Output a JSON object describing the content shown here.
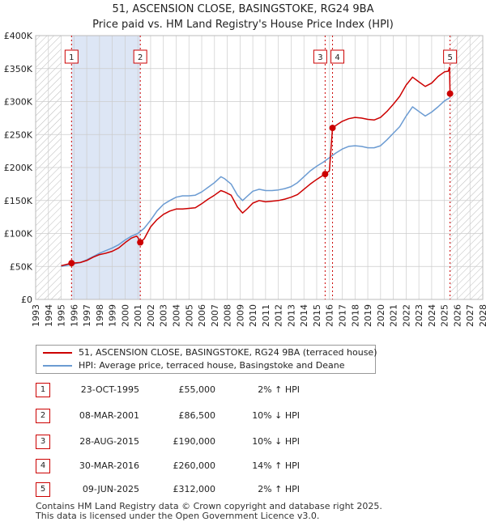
{
  "title_line1": "51, ASCENSION CLOSE, BASINGSTOKE, RG24 9BA",
  "title_line2": "Price paid vs. HM Land Registry's House Price Index (HPI)",
  "colors": {
    "red": "#cc0000",
    "blue": "#6b9bd2",
    "shade": "#dde6f5",
    "hatch": "#bbbbbb",
    "grid": "#cccccc"
  },
  "chart_data": {
    "type": "line",
    "xlim": [
      1993,
      2028
    ],
    "ylim": [
      0,
      400000
    ],
    "x_ticks": [
      "1993",
      "1994",
      "1995",
      "1996",
      "1997",
      "1998",
      "1999",
      "2000",
      "2001",
      "2002",
      "2003",
      "2004",
      "2005",
      "2006",
      "2007",
      "2008",
      "2009",
      "2010",
      "2011",
      "2012",
      "2013",
      "2014",
      "2015",
      "2016",
      "2017",
      "2018",
      "2019",
      "2020",
      "2021",
      "2022",
      "2023",
      "2024",
      "2025",
      "2026",
      "2027",
      "2028"
    ],
    "y_ticks": [
      {
        "value": 0,
        "label": "£0"
      },
      {
        "value": 50000,
        "label": "£50K"
      },
      {
        "value": 100000,
        "label": "£100K"
      },
      {
        "value": 150000,
        "label": "£150K"
      },
      {
        "value": 200000,
        "label": "£200K"
      },
      {
        "value": 250000,
        "label": "£250K"
      },
      {
        "value": 300000,
        "label": "£300K"
      },
      {
        "value": 350000,
        "label": "£350K"
      },
      {
        "value": 400000,
        "label": "£400K"
      }
    ],
    "hatched_before": 1995.0,
    "hatched_after": 2025.45,
    "shaded_range": [
      1995.81,
      2001.19
    ],
    "series": [
      {
        "name": "51, ASCENSION CLOSE, BASINGSTOKE, RG24 9BA (terraced house)",
        "color": "#cc0000",
        "points": [
          [
            1995.0,
            51000
          ],
          [
            1995.81,
            55000
          ],
          [
            1996.5,
            56000
          ],
          [
            1997.0,
            59000
          ],
          [
            1997.5,
            64000
          ],
          [
            1998.0,
            68000
          ],
          [
            1998.5,
            70000
          ],
          [
            1999.0,
            73000
          ],
          [
            1999.5,
            78000
          ],
          [
            2000.0,
            86000
          ],
          [
            2000.5,
            93000
          ],
          [
            2000.9,
            96000
          ],
          [
            2001.0,
            94000
          ],
          [
            2001.19,
            86500
          ],
          [
            2001.5,
            92000
          ],
          [
            2002.0,
            110000
          ],
          [
            2002.5,
            121000
          ],
          [
            2003.0,
            129000
          ],
          [
            2003.5,
            134000
          ],
          [
            2004.0,
            137000
          ],
          [
            2004.5,
            137000
          ],
          [
            2005.0,
            138000
          ],
          [
            2005.5,
            139000
          ],
          [
            2006.0,
            145000
          ],
          [
            2006.5,
            152000
          ],
          [
            2007.0,
            158000
          ],
          [
            2007.5,
            165000
          ],
          [
            2007.8,
            163000
          ],
          [
            2008.3,
            158000
          ],
          [
            2008.8,
            140000
          ],
          [
            2009.2,
            131000
          ],
          [
            2009.6,
            138000
          ],
          [
            2010.0,
            146000
          ],
          [
            2010.5,
            150000
          ],
          [
            2011.0,
            148000
          ],
          [
            2011.5,
            149000
          ],
          [
            2012.0,
            150000
          ],
          [
            2012.5,
            152000
          ],
          [
            2013.0,
            155000
          ],
          [
            2013.5,
            159000
          ],
          [
            2014.0,
            167000
          ],
          [
            2014.5,
            175000
          ],
          [
            2015.0,
            182000
          ],
          [
            2015.4,
            187000
          ],
          [
            2015.66,
            190000
          ],
          [
            2016.0,
            195000
          ],
          [
            2016.24,
            260000
          ],
          [
            2016.6,
            265000
          ],
          [
            2017.0,
            270000
          ],
          [
            2017.5,
            274000
          ],
          [
            2018.0,
            276000
          ],
          [
            2018.5,
            275000
          ],
          [
            2019.0,
            273000
          ],
          [
            2019.5,
            272000
          ],
          [
            2020.0,
            276000
          ],
          [
            2020.5,
            285000
          ],
          [
            2021.0,
            296000
          ],
          [
            2021.5,
            308000
          ],
          [
            2022.0,
            325000
          ],
          [
            2022.5,
            337000
          ],
          [
            2023.0,
            330000
          ],
          [
            2023.5,
            323000
          ],
          [
            2024.0,
            328000
          ],
          [
            2024.5,
            338000
          ],
          [
            2025.0,
            345000
          ],
          [
            2025.3,
            346000
          ],
          [
            2025.4,
            352000
          ],
          [
            2025.44,
            312000
          ]
        ]
      },
      {
        "name": "HPI: Average price, terraced house, Basingstoke and Deane",
        "color": "#6b9bd2",
        "points": [
          [
            1995.0,
            50000
          ],
          [
            1995.81,
            53000
          ],
          [
            1996.5,
            56000
          ],
          [
            1997.0,
            60000
          ],
          [
            1997.5,
            65000
          ],
          [
            1998.0,
            70000
          ],
          [
            1998.5,
            74000
          ],
          [
            1999.0,
            78000
          ],
          [
            1999.5,
            83000
          ],
          [
            2000.0,
            90000
          ],
          [
            2000.5,
            96000
          ],
          [
            2001.0,
            100000
          ],
          [
            2001.5,
            108000
          ],
          [
            2002.0,
            120000
          ],
          [
            2002.5,
            134000
          ],
          [
            2003.0,
            144000
          ],
          [
            2003.5,
            150000
          ],
          [
            2004.0,
            155000
          ],
          [
            2004.5,
            157000
          ],
          [
            2005.0,
            157000
          ],
          [
            2005.5,
            158000
          ],
          [
            2006.0,
            163000
          ],
          [
            2006.5,
            170000
          ],
          [
            2007.0,
            177000
          ],
          [
            2007.5,
            186000
          ],
          [
            2007.8,
            183000
          ],
          [
            2008.3,
            175000
          ],
          [
            2008.8,
            158000
          ],
          [
            2009.2,
            150000
          ],
          [
            2009.6,
            157000
          ],
          [
            2010.0,
            164000
          ],
          [
            2010.5,
            167000
          ],
          [
            2011.0,
            165000
          ],
          [
            2011.5,
            165000
          ],
          [
            2012.0,
            166000
          ],
          [
            2012.5,
            168000
          ],
          [
            2013.0,
            171000
          ],
          [
            2013.5,
            177000
          ],
          [
            2014.0,
            186000
          ],
          [
            2014.5,
            195000
          ],
          [
            2015.0,
            202000
          ],
          [
            2015.5,
            208000
          ],
          [
            2016.0,
            215000
          ],
          [
            2016.5,
            222000
          ],
          [
            2017.0,
            228000
          ],
          [
            2017.5,
            232000
          ],
          [
            2018.0,
            233000
          ],
          [
            2018.5,
            232000
          ],
          [
            2019.0,
            230000
          ],
          [
            2019.5,
            230000
          ],
          [
            2020.0,
            233000
          ],
          [
            2020.5,
            242000
          ],
          [
            2021.0,
            252000
          ],
          [
            2021.5,
            262000
          ],
          [
            2022.0,
            278000
          ],
          [
            2022.5,
            292000
          ],
          [
            2023.0,
            285000
          ],
          [
            2023.5,
            278000
          ],
          [
            2024.0,
            284000
          ],
          [
            2024.5,
            292000
          ],
          [
            2025.0,
            301000
          ],
          [
            2025.44,
            306000
          ]
        ]
      }
    ],
    "sales": [
      {
        "n": "1",
        "x": 1995.81,
        "price": 55000
      },
      {
        "n": "2",
        "x": 2001.19,
        "price": 86500
      },
      {
        "n": "3",
        "x": 2015.66,
        "price": 190000
      },
      {
        "n": "4",
        "x": 2016.24,
        "price": 260000
      },
      {
        "n": "5",
        "x": 2025.44,
        "price": 312000
      }
    ]
  },
  "legend": {
    "red": "51, ASCENSION CLOSE, BASINGSTOKE, RG24 9BA (terraced house)",
    "blue": "HPI: Average price, terraced house, Basingstoke and Deane"
  },
  "transactions": [
    {
      "n": "1",
      "date": "23-OCT-1995",
      "price": "£55,000",
      "hpi": "2% ↑ HPI"
    },
    {
      "n": "2",
      "date": "08-MAR-2001",
      "price": "£86,500",
      "hpi": "10% ↓ HPI"
    },
    {
      "n": "3",
      "date": "28-AUG-2015",
      "price": "£190,000",
      "hpi": "10% ↓ HPI"
    },
    {
      "n": "4",
      "date": "30-MAR-2016",
      "price": "£260,000",
      "hpi": "14% ↑ HPI"
    },
    {
      "n": "5",
      "date": "09-JUN-2025",
      "price": "£312,000",
      "hpi": "2% ↑ HPI"
    }
  ],
  "footer_line1": "Contains HM Land Registry data © Crown copyright and database right 2025.",
  "footer_line2": "This data is licensed under the Open Government Licence v3.0."
}
